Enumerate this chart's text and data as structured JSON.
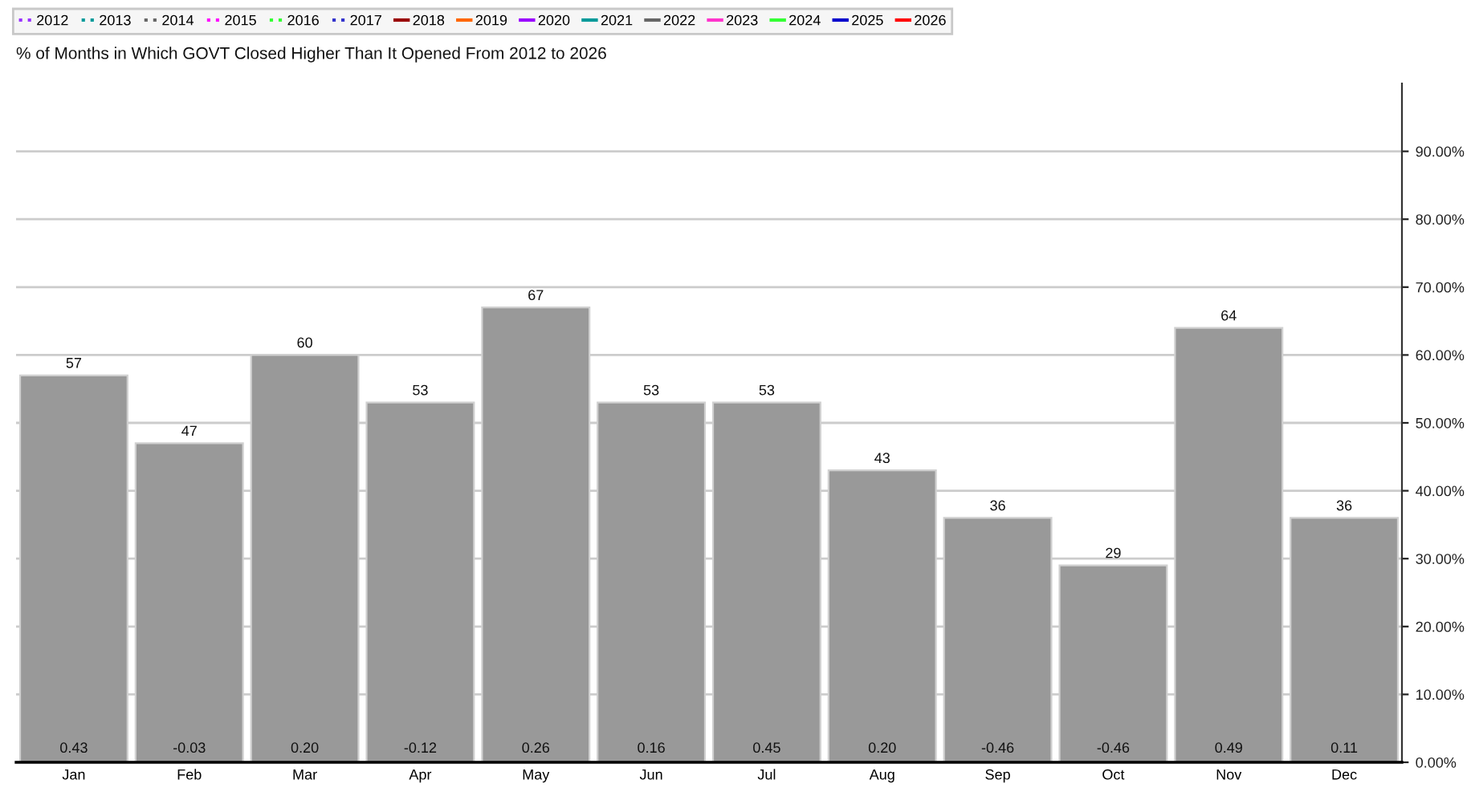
{
  "chart_data": {
    "type": "bar",
    "title": "% of Months in Which GOVT Closed Higher Than It Opened From 2012 to 2026",
    "categories": [
      "Jan",
      "Feb",
      "Mar",
      "Apr",
      "May",
      "Jun",
      "Jul",
      "Aug",
      "Sep",
      "Oct",
      "Nov",
      "Dec"
    ],
    "series": [
      {
        "color": "#999999",
        "values": [
          57,
          47,
          60,
          53,
          67,
          53,
          53,
          43,
          36,
          29,
          64,
          36
        ]
      },
      {
        "type": "line",
        "name": "2012",
        "color": "#9933ff",
        "line_style": "dotted",
        "values": [
          null,
          null,
          null,
          null,
          null,
          null,
          null,
          null,
          null,
          null,
          null,
          null
        ]
      },
      {
        "type": "line",
        "name": "2013",
        "color": "#009999",
        "line_style": "dotted",
        "values": [
          null,
          null,
          null,
          null,
          null,
          null,
          null,
          null,
          null,
          null,
          null,
          null
        ]
      },
      {
        "type": "line",
        "name": "2014",
        "color": "#666666",
        "line_style": "dotted",
        "values": [
          null,
          null,
          null,
          null,
          null,
          null,
          null,
          null,
          null,
          null,
          null,
          null
        ]
      },
      {
        "type": "line",
        "name": "2015",
        "color": "#ff00ff",
        "line_style": "dotted",
        "values": [
          null,
          null,
          null,
          null,
          null,
          null,
          null,
          null,
          null,
          null,
          null,
          null
        ]
      },
      {
        "type": "line",
        "name": "2016",
        "color": "#33ff33",
        "line_style": "dotted",
        "values": [
          null,
          null,
          null,
          null,
          null,
          null,
          null,
          null,
          null,
          null,
          null,
          null
        ]
      },
      {
        "type": "line",
        "name": "2017",
        "color": "#3333cc",
        "line_style": "dotted",
        "values": [
          null,
          null,
          null,
          null,
          null,
          null,
          null,
          null,
          null,
          null,
          null,
          null
        ]
      },
      {
        "type": "line",
        "name": "2018",
        "color": "#990000",
        "line_style": "solid",
        "values": [
          null,
          null,
          null,
          null,
          null,
          null,
          null,
          null,
          null,
          null,
          null,
          null
        ]
      },
      {
        "type": "line",
        "name": "2019",
        "color": "#ff6600",
        "line_style": "solid",
        "values": [
          null,
          null,
          null,
          null,
          null,
          null,
          null,
          null,
          null,
          null,
          null,
          null
        ]
      },
      {
        "type": "line",
        "name": "2020",
        "color": "#9900ff",
        "line_style": "solid",
        "values": [
          null,
          null,
          null,
          null,
          null,
          null,
          null,
          null,
          null,
          null,
          null,
          null
        ]
      },
      {
        "type": "line",
        "name": "2021",
        "color": "#009999",
        "line_style": "solid",
        "values": [
          null,
          null,
          null,
          null,
          null,
          null,
          null,
          null,
          null,
          null,
          null,
          null
        ]
      },
      {
        "type": "line",
        "name": "2022",
        "color": "#666666",
        "line_style": "solid",
        "values": [
          null,
          null,
          null,
          null,
          null,
          null,
          null,
          null,
          null,
          null,
          null,
          null
        ]
      },
      {
        "type": "line",
        "name": "2023",
        "color": "#ff33cc",
        "line_style": "solid",
        "values": [
          null,
          null,
          null,
          null,
          null,
          null,
          null,
          null,
          null,
          null,
          null,
          null
        ]
      },
      {
        "type": "line",
        "name": "2024",
        "color": "#33ff33",
        "line_style": "solid",
        "values": [
          null,
          null,
          null,
          null,
          null,
          null,
          null,
          null,
          null,
          null,
          null,
          null
        ]
      },
      {
        "type": "line",
        "name": "2025",
        "color": "#0000cc",
        "line_style": "solid",
        "values": [
          null,
          null,
          null,
          null,
          null,
          null,
          null,
          null,
          null,
          null,
          null,
          null
        ]
      },
      {
        "type": "line",
        "name": "2026",
        "color": "#ff0000",
        "line_style": "solid",
        "values": [
          null,
          null,
          null,
          null,
          null,
          null,
          null,
          null,
          null,
          null,
          null,
          null
        ]
      }
    ],
    "ylim": [
      0,
      100
    ],
    "yticks": [
      {
        "value": 0,
        "label": "0.00%"
      },
      {
        "value": 10,
        "label": "10.00%"
      },
      {
        "value": 20,
        "label": "20.00%"
      },
      {
        "value": 30,
        "label": "30.00%"
      },
      {
        "value": 40,
        "label": "40.00%"
      },
      {
        "value": 50,
        "label": "50.00%"
      },
      {
        "value": 60,
        "label": "60.00%"
      },
      {
        "value": 70,
        "label": "70.00%"
      },
      {
        "value": 80,
        "label": "80.00%"
      },
      {
        "value": 90,
        "label": "90.00%"
      }
    ],
    "grid": "y",
    "legend": "top left",
    "data_labels": true,
    "annotations": [
      {
        "text": "0.43",
        "x": "Jan",
        "y": 0
      },
      {
        "text": "-0.03",
        "x": "Feb",
        "y": 0
      },
      {
        "text": "0.20",
        "x": "Mar",
        "y": 0
      },
      {
        "text": "-0.12",
        "x": "Apr",
        "y": 0
      },
      {
        "text": "0.26",
        "x": "May",
        "y": 0
      },
      {
        "text": "0.16",
        "x": "Jun",
        "y": 0
      },
      {
        "text": "0.45",
        "x": "Jul",
        "y": 0
      },
      {
        "text": "0.20",
        "x": "Aug",
        "y": 0
      },
      {
        "text": "-0.46",
        "x": "Sep",
        "y": 0
      },
      {
        "text": "-0.46",
        "x": "Oct",
        "y": 0
      },
      {
        "text": "0.49",
        "x": "Nov",
        "y": 0
      },
      {
        "text": "0.11",
        "x": "Dec",
        "y": 0
      }
    ]
  }
}
